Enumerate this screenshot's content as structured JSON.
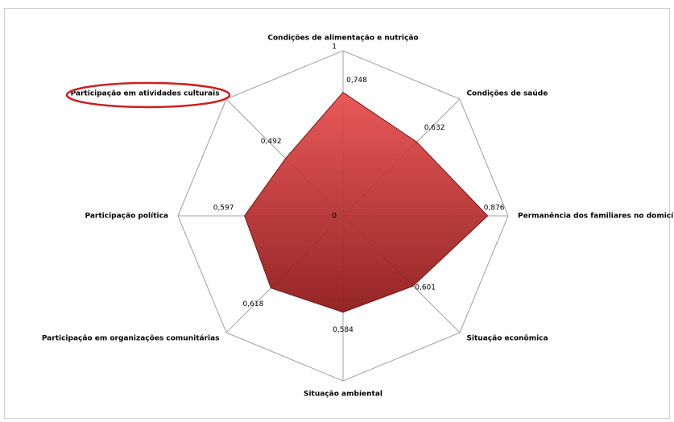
{
  "chart_data": {
    "type": "radar",
    "categories": [
      "Condições de alimentação  e nutrição",
      "Condições de saúde",
      "Permanência dos familiares no domicílio",
      "Situação econômica",
      "Situação ambiental",
      "Participação em organizações comunitárias",
      "Participação política",
      "Participação em atividades culturais"
    ],
    "values": [
      0.748,
      0.632,
      0.876,
      0.601,
      0.584,
      0.618,
      0.597,
      0.492
    ],
    "value_labels": [
      "0,748",
      "0,632",
      "0,876",
      "0,601",
      "0,584",
      "0,618",
      "0,597",
      "0,492"
    ],
    "color": "#c8302f",
    "ylim": [
      0,
      1
    ],
    "yticks": [
      0,
      1
    ],
    "grid": true
  }
}
